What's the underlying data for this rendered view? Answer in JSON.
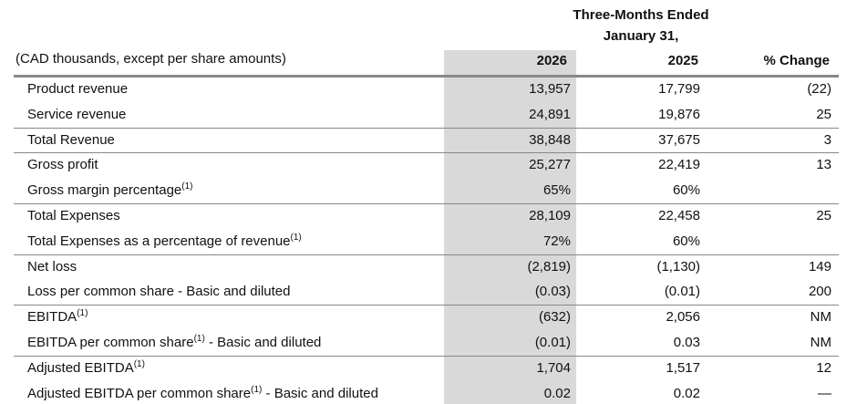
{
  "table": {
    "period_title": "Three-Months Ended",
    "period_date": "January 31,",
    "units": "(CAD thousands, except per share amounts)",
    "columns": [
      "2026",
      "2025",
      "% Change"
    ],
    "groups": [
      {
        "rows": [
          {
            "label": "Product revenue",
            "cells": [
              "13,957",
              "17,799",
              "(22)"
            ]
          },
          {
            "label": "Service revenue",
            "cells": [
              "24,891",
              "19,876",
              "25"
            ]
          }
        ]
      },
      {
        "rows": [
          {
            "label": "Total Revenue",
            "cells": [
              "38,848",
              "37,675",
              "3"
            ]
          }
        ]
      },
      {
        "rows": [
          {
            "label": "Gross profit",
            "cells": [
              "25,277",
              "22,419",
              "13"
            ]
          },
          {
            "label": "Gross margin percentage",
            "note": "(1)",
            "cells": [
              "65%",
              "60%",
              null
            ]
          }
        ]
      },
      {
        "rows": [
          {
            "label": "Total Expenses",
            "cells": [
              "28,109",
              "22,458",
              "25"
            ]
          },
          {
            "label": "Total Expenses as a percentage of revenue",
            "note": "(1)",
            "cells": [
              "72%",
              "60%",
              null
            ]
          }
        ]
      },
      {
        "rows": [
          {
            "label": "Net loss",
            "cells": [
              "(2,819)",
              "(1,130)",
              "149"
            ]
          },
          {
            "label": "Loss per common share - Basic and diluted",
            "cells": [
              "(0.03)",
              "(0.01)",
              "200"
            ]
          }
        ]
      },
      {
        "rows": [
          {
            "label": "EBITDA",
            "note": "(1)",
            "cells": [
              "(632)",
              "2,056",
              "NM"
            ]
          },
          {
            "label": "EBITDA per common share",
            "note": "(1)",
            "suffix": " - Basic and diluted",
            "cells": [
              "(0.01)",
              "0.03",
              "NM"
            ]
          }
        ]
      },
      {
        "rows": [
          {
            "label": "Adjusted EBITDA",
            "note": "(1)",
            "cells": [
              "1,704",
              "1,517",
              "12"
            ]
          },
          {
            "label": "Adjusted EBITDA per common share",
            "note": "(1)",
            "suffix": " - Basic and diluted",
            "cells": [
              "0.02",
              "0.02",
              "—"
            ]
          }
        ]
      }
    ]
  }
}
